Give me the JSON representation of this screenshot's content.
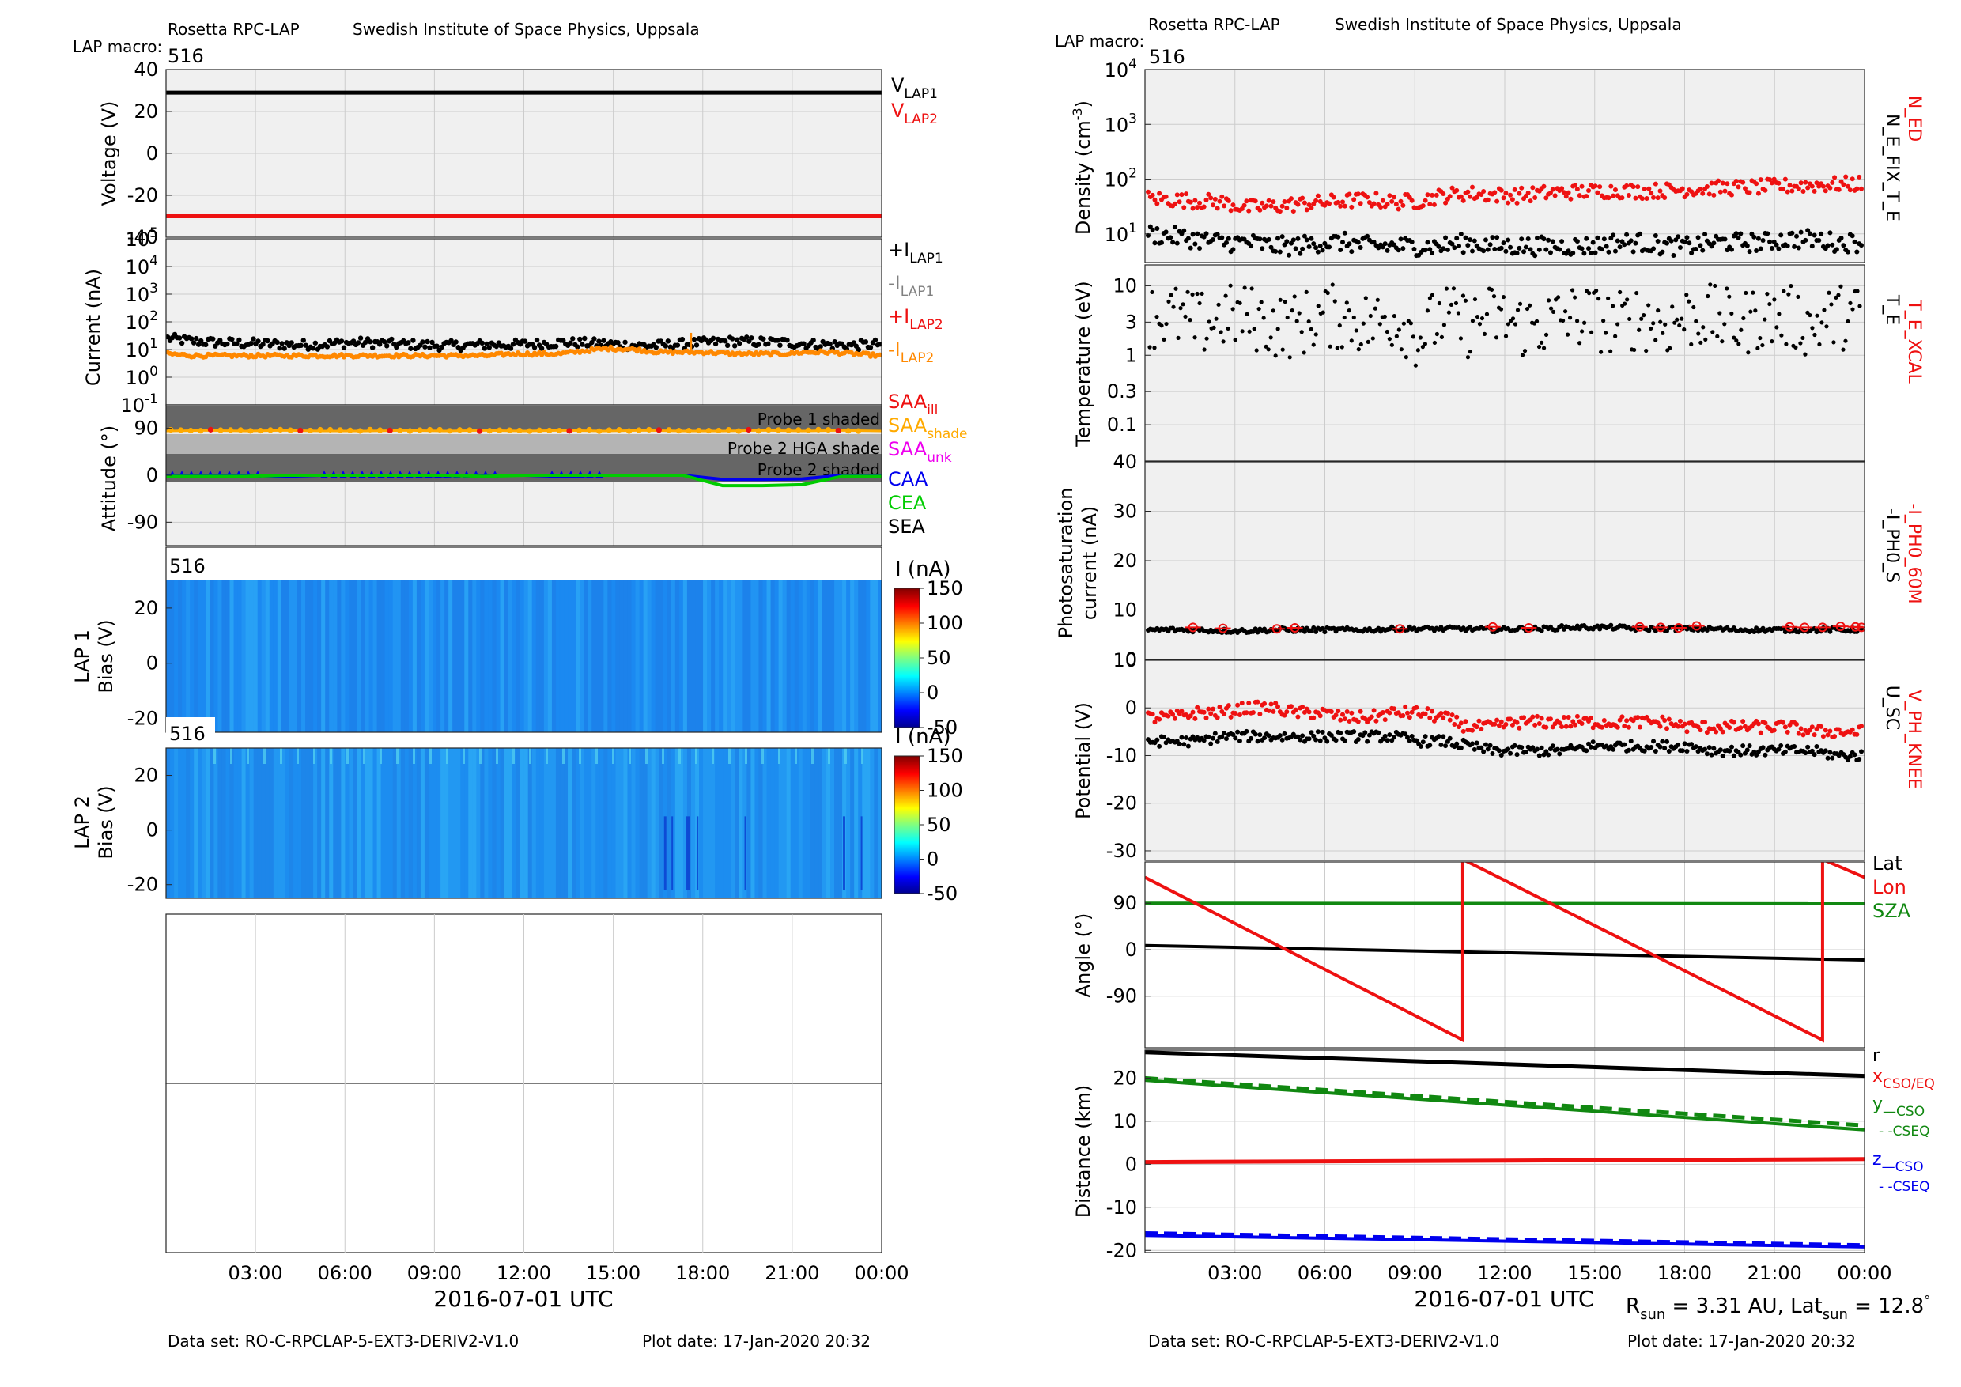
{
  "left": {
    "header": {
      "instrument": "Rosetta RPC-LAP",
      "institute": "Swedish Institute of Space Physics, Uppsala",
      "macro_label": "LAP macro:",
      "macro_value": "516"
    },
    "footer": {
      "dataset": "Data set: RO-C-RPCLAP-5-EXT3-DERIV2-V1.0",
      "plot_date": "Plot date: 17-Jan-2020 20:32"
    },
    "xaxis": {
      "ticks": [
        "03:00",
        "06:00",
        "09:00",
        "12:00",
        "15:00",
        "18:00",
        "21:00",
        "00:00"
      ],
      "title": "2016-07-01 UTC"
    }
  },
  "right": {
    "header": {
      "instrument": "Rosetta RPC-LAP",
      "institute": "Swedish Institute of Space Physics, Uppsala",
      "macro_label": "LAP macro:",
      "macro_value": "516"
    },
    "footer": {
      "dataset": "Data set: RO-C-RPCLAP-5-EXT3-DERIV2-V1.0",
      "plot_date": "Plot date: 17-Jan-2020 20:32"
    },
    "xaxis": {
      "ticks": [
        "03:00",
        "06:00",
        "09:00",
        "12:00",
        "15:00",
        "18:00",
        "21:00",
        "00:00"
      ],
      "title": "2016-07-01 UTC"
    },
    "solar_info": "R_sun = 3.31 AU, Lat_sun = 12.8°"
  },
  "colors": {
    "black": "#000000",
    "red": "#ee1111",
    "orange": "#ff8800",
    "gray": "#808080",
    "blue": "#0000ee",
    "green": "#00cc00",
    "darkgreen": "#118811",
    "magenta": "#ee00ee",
    "gold": "#ffaa00",
    "panel_bg": "#f0f0f0"
  },
  "chart_data": [
    {
      "id": "voltage",
      "type": "line",
      "ylabel": "Voltage (V)",
      "ylim": [
        -40,
        40
      ],
      "yticks": [
        "40",
        "20",
        "0",
        "-20",
        "-40"
      ],
      "series": [
        {
          "name": "V_LAP1",
          "values": [
            29,
            29
          ]
        },
        {
          "name": "V_LAP2",
          "values": [
            -30,
            -30
          ]
        }
      ],
      "legend": [
        {
          "main": "V",
          "sub": "LAP1"
        },
        {
          "main": "V",
          "sub": "LAP2"
        }
      ]
    },
    {
      "id": "current",
      "type": "scatter",
      "ylabel": "Current (nA)",
      "scale": "log",
      "ylim": [
        0.1,
        100000
      ],
      "yticks": [
        {
          "b": "10",
          "e": "5"
        },
        {
          "b": "10",
          "e": "4"
        },
        {
          "b": "10",
          "e": "3"
        },
        {
          "b": "10",
          "e": "2"
        },
        {
          "b": "10",
          "e": "1"
        },
        {
          "b": "10",
          "e": "0"
        },
        {
          "b": "10",
          "e": "-1"
        }
      ],
      "series": [
        {
          "name": "+I_LAP1",
          "level": [
            25,
            20,
            18,
            17,
            16,
            15,
            15,
            17,
            18,
            16,
            15,
            14,
            14,
            15,
            15,
            16,
            18,
            17,
            16,
            14,
            14,
            16,
            18,
            20,
            19,
            18,
            16,
            15,
            14,
            16
          ]
        },
        {
          "name": "-I_LAP2",
          "level": [
            7,
            6,
            6,
            6,
            6,
            6,
            6,
            6,
            6,
            6,
            6,
            6,
            6,
            6,
            7,
            7,
            7,
            9,
            11,
            10,
            8,
            8,
            8,
            7,
            7,
            7,
            8,
            8,
            7,
            6
          ]
        }
      ],
      "legend": [
        {
          "main": "+I",
          "sub": "LAP1"
        },
        {
          "main": "-I",
          "sub": "LAP1"
        },
        {
          "main": "+I",
          "sub": "LAP2"
        },
        {
          "main": "-I",
          "sub": "LAP2"
        }
      ]
    },
    {
      "id": "attitude",
      "type": "line",
      "ylabel": "Attitude (°)",
      "ylim": [
        -135,
        135
      ],
      "yticks": [
        "90",
        "0",
        "-90"
      ],
      "shades": [
        "Probe 1 shaded",
        "Probe 2 HGA shade",
        "Probe 2 shaded"
      ],
      "series": [
        {
          "name": "SAA",
          "values": [
            85,
            86,
            85,
            86,
            85,
            85,
            86,
            85,
            86,
            85,
            86,
            85,
            86,
            85,
            85,
            86,
            85,
            86,
            85
          ]
        },
        {
          "name": "CAA",
          "values": [
            0,
            0,
            0,
            -2,
            0,
            0,
            0,
            -1,
            0,
            0,
            -2,
            0,
            0,
            0,
            -8,
            -8,
            -7,
            0,
            0
          ]
        },
        {
          "name": "CEA",
          "values": [
            -2,
            -2,
            -2,
            0,
            0,
            0,
            0,
            0,
            -2,
            0,
            0,
            0,
            0,
            0,
            -20,
            -20,
            -18,
            -2,
            -2
          ]
        }
      ],
      "legend": [
        {
          "main": "SAA",
          "sub": "ill"
        },
        {
          "main": "SAA",
          "sub": "shade"
        },
        {
          "main": "SAA",
          "sub": "unk"
        },
        {
          "main": "CAA",
          "sub": ""
        },
        {
          "main": "CEA",
          "sub": ""
        },
        {
          "main": "SEA",
          "sub": ""
        }
      ]
    },
    {
      "id": "lap1_sweep",
      "type": "heatmap",
      "ylabel_line1": "LAP 1",
      "ylabel_line2": "Bias (V)",
      "ylim": [
        -25,
        30
      ],
      "yticks": [
        "20",
        "0",
        "-20"
      ],
      "macro": "516",
      "colorbar": {
        "label": "I (nA)",
        "ticks": [
          "150",
          "100",
          "50",
          "0",
          "-50"
        ],
        "range": [
          -50,
          150
        ]
      }
    },
    {
      "id": "lap2_sweep",
      "type": "heatmap",
      "ylabel_line1": "LAP 2",
      "ylabel_line2": "Bias (V)",
      "ylim": [
        -25,
        30
      ],
      "yticks": [
        "20",
        "0",
        "-20"
      ],
      "macro": "516",
      "colorbar": {
        "label": "I (nA)",
        "ticks": [
          "150",
          "100",
          "50",
          "0",
          "-50"
        ],
        "range": [
          -50,
          150
        ]
      }
    },
    {
      "id": "density",
      "type": "scatter",
      "ylabel": "Density (cm^-3)",
      "scale": "log",
      "ylim": [
        3,
        10000
      ],
      "yticks": [
        {
          "b": "10",
          "e": "4"
        },
        {
          "b": "10",
          "e": "3"
        },
        {
          "b": "10",
          "e": "2"
        },
        {
          "b": "10",
          "e": "1"
        }
      ],
      "series": [
        {
          "name": "N_ED",
          "level": [
            45,
            42,
            40,
            38,
            30,
            32,
            35,
            37,
            40,
            42,
            38,
            40,
            50,
            55,
            52,
            50,
            55,
            58,
            60,
            62,
            60,
            62,
            65,
            68,
            70,
            72,
            75,
            78,
            80,
            82
          ]
        },
        {
          "name": "N_E_FIX_T_E",
          "level": [
            10,
            9,
            8,
            7,
            7,
            6,
            6,
            7,
            7,
            6,
            6,
            6,
            6,
            7,
            6,
            6,
            6,
            6,
            6,
            7,
            7,
            6,
            6,
            7,
            7,
            7,
            8,
            8,
            7,
            7
          ]
        }
      ],
      "labels": [
        "N_ED",
        "N_E_FIX_T_E"
      ]
    },
    {
      "id": "temperature",
      "type": "scatter",
      "ylabel": "Temperature (eV)",
      "scale": "log",
      "ylim": [
        0.03,
        20
      ],
      "yticks": [
        "10",
        "3",
        "1",
        "0.3",
        "0.1"
      ],
      "series": [
        {
          "name": "T_E",
          "level": [
            4,
            4,
            3,
            4,
            4,
            3,
            3,
            4,
            4,
            3,
            4,
            2,
            4,
            3,
            4,
            3,
            3,
            4,
            4,
            3,
            4,
            3,
            4,
            4,
            3,
            4,
            4,
            3,
            4,
            4
          ]
        }
      ],
      "labels": [
        "T_E_XCAL",
        "T_E"
      ]
    },
    {
      "id": "photosat",
      "type": "scatter",
      "ylabel_line1": "Photosaturation",
      "ylabel_line2": "current (nA)",
      "ylim": [
        0,
        40
      ],
      "yticks": [
        "40",
        "30",
        "20",
        "10",
        "0"
      ],
      "series": [
        {
          "name": "-I_PH0_S",
          "level": [
            6,
            6,
            6,
            5.8,
            5.8,
            6,
            6,
            6,
            6,
            6,
            6.2,
            6.2,
            6.2,
            6.2,
            6,
            6.2,
            6.2,
            6.5,
            6.5,
            6.5,
            6.2,
            6.2,
            6.2,
            6.2,
            6,
            6,
            6,
            6,
            6,
            6
          ]
        },
        {
          "name": "-I_PH0_60M",
          "values": [
            6.5,
            6.3,
            6.2,
            6.4,
            6.2,
            6.6,
            6.4,
            6.6,
            6.5,
            6.4,
            6.8,
            6.6,
            6.5,
            6.5,
            6.7,
            6.6,
            6.5
          ]
        }
      ],
      "labels": [
        "-I_PH0_60M",
        "-I_PH0_S"
      ]
    },
    {
      "id": "potential",
      "type": "scatter",
      "ylabel": "Potential (V)",
      "ylim": [
        -32,
        10
      ],
      "yticks": [
        "10",
        "0",
        "-10",
        "-20",
        "-30"
      ],
      "series": [
        {
          "name": "V_PH_KNEE",
          "level": [
            -2,
            -2,
            -1,
            -1,
            0,
            0,
            -1,
            -1,
            -2,
            -2,
            -1,
            -1,
            -2,
            -4,
            -4,
            -3,
            -3,
            -3,
            -3,
            -3,
            -3,
            -3,
            -4,
            -4,
            -4,
            -4,
            -4,
            -5,
            -5,
            -5
          ]
        },
        {
          "name": "U_SC",
          "level": [
            -7,
            -7,
            -7,
            -6,
            -6,
            -6,
            -6,
            -6,
            -6,
            -6,
            -6,
            -7,
            -7,
            -8,
            -9,
            -9,
            -9,
            -9,
            -8,
            -8,
            -8,
            -8,
            -8,
            -9,
            -9,
            -9,
            -9,
            -9,
            -10,
            -10
          ]
        }
      ],
      "labels": [
        "V_PH_KNEE",
        "U_SC"
      ]
    },
    {
      "id": "angle",
      "type": "line",
      "ylabel": "Angle (°)",
      "ylim": [
        -190,
        170
      ],
      "yticks": [
        "90",
        "0",
        "-90"
      ],
      "series": [
        {
          "name": "Lat",
          "values": [
            8,
            -20
          ]
        },
        {
          "name": "Lon",
          "x": [
            0,
            10.6,
            10.6,
            22.6,
            22.6,
            24
          ],
          "values": [
            140,
            -175,
            175,
            -175,
            175,
            140
          ]
        },
        {
          "name": "SZA",
          "values": [
            90,
            89
          ]
        }
      ],
      "legend": [
        "Lat",
        "Lon",
        "SZA"
      ]
    },
    {
      "id": "distance",
      "type": "line",
      "ylabel": "Distance (km)",
      "ylim": [
        -20.5,
        26.5
      ],
      "yticks": [
        "20",
        "10",
        "0",
        "-10",
        "-20"
      ],
      "series": [
        {
          "name": "r",
          "values": [
            26,
            20.5
          ]
        },
        {
          "name": "x_CSO/EQ",
          "values": [
            0.5,
            1.2
          ]
        },
        {
          "name": "y_CSO",
          "values": [
            19.5,
            8
          ]
        },
        {
          "name": "y_CSEQ",
          "values": [
            20,
            9
          ]
        },
        {
          "name": "z_CSO",
          "values": [
            -16.5,
            -19.2
          ]
        },
        {
          "name": "z_CSEQ",
          "values": [
            -16,
            -18.8
          ]
        }
      ]
    }
  ]
}
